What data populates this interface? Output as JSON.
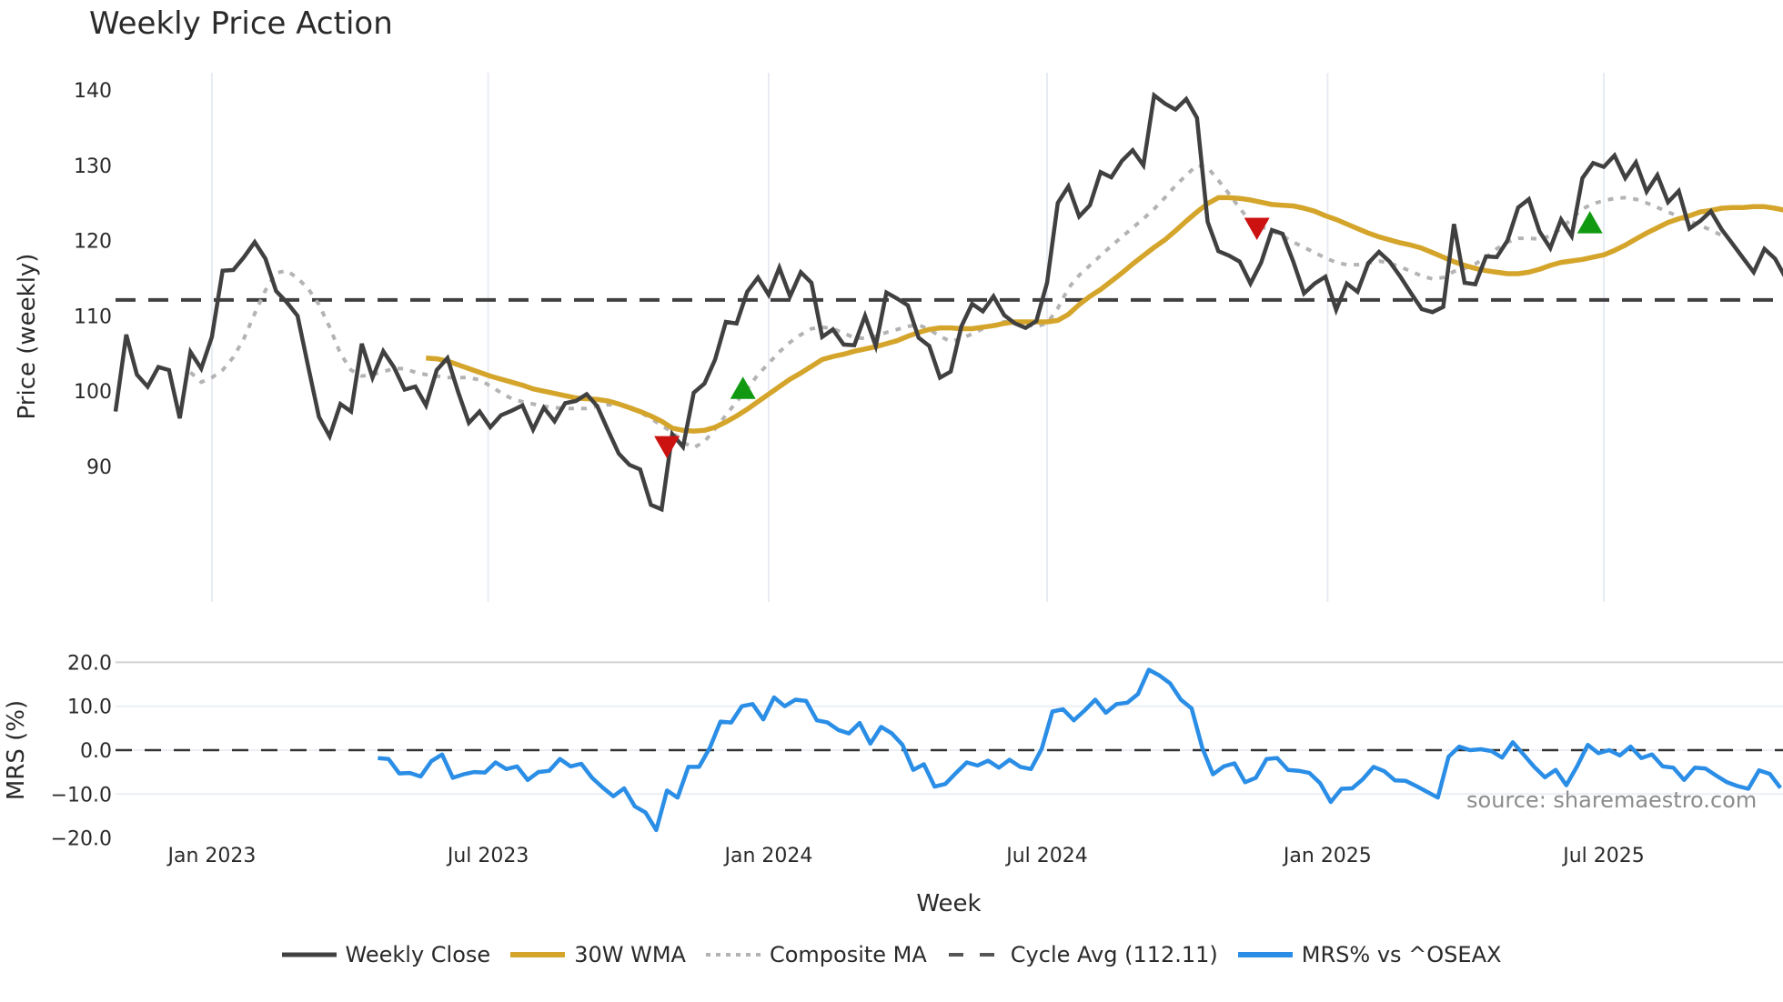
{
  "title": "Weekly Price Action",
  "source_text": "source: sharemaestro.com",
  "legend": [
    {
      "label": "Weekly Close",
      "color": "#404040",
      "style": "solid"
    },
    {
      "label": "30W WMA",
      "color": "#d4a52a",
      "style": "solid"
    },
    {
      "label": "Composite MA",
      "color": "#b3b3b3",
      "style": "dotted"
    },
    {
      "label": "Cycle Avg (112.11)",
      "color": "#404040",
      "style": "dashed"
    },
    {
      "label": "MRS% vs ^OSEAX",
      "color": "#2b8ee6",
      "style": "solid"
    }
  ],
  "chart_data": [
    {
      "type": "line",
      "title": "Weekly Price Action",
      "xlabel": "Week",
      "ylabel": "Price (weekly)",
      "ylim": [
        81,
        141
      ],
      "yticks": [
        90,
        100,
        110,
        120,
        130,
        140
      ],
      "xticks": [
        {
          "label": "Jan 2023",
          "week": 9
        },
        {
          "label": "Jul 2023",
          "week": 34.8
        },
        {
          "label": "Jan 2024",
          "week": 61
        },
        {
          "label": "Jul 2024",
          "week": 87
        },
        {
          "label": "Jan 2025",
          "week": 113.2
        },
        {
          "label": "Jul 2025",
          "week": 139
        }
      ],
      "x_start_week": 0,
      "x_end_week": 155.7,
      "grid": {
        "vertical": true,
        "horizontal": false
      },
      "cycle_avg": 112.11,
      "series": [
        {
          "name": "Weekly Close",
          "start_week": 0,
          "values": [
            97.3,
            107.5,
            102.2,
            100.6,
            103.2,
            102.8,
            96.4,
            105.2,
            103.0,
            107.2,
            116.0,
            116.1,
            117.8,
            119.8,
            117.6,
            113.3,
            111.8,
            110.0,
            103.2,
            96.6,
            94.0,
            98.3,
            97.3,
            106.3,
            101.8,
            105.3,
            103.2,
            100.2,
            100.6,
            98.1,
            102.8,
            104.4,
            99.9,
            95.8,
            97.3,
            95.2,
            96.8,
            97.4,
            98.1,
            94.9,
            97.8,
            96.0,
            98.4,
            98.7,
            99.6,
            98.0,
            94.8,
            91.7,
            90.2,
            89.6,
            84.9,
            84.3,
            94.3,
            92.6,
            99.8,
            101.0,
            104.2,
            109.2,
            109.0,
            113.2,
            115.1,
            112.8,
            116.4,
            112.6,
            115.8,
            114.4,
            107.2,
            108.2,
            106.2,
            106.1,
            110.0,
            106.0,
            113.1,
            112.3,
            111.4,
            107.1,
            106.0,
            101.8,
            102.6,
            108.6,
            111.6,
            110.6,
            112.6,
            110.1,
            109.0,
            108.4,
            109.3,
            114.4,
            125.0,
            127.2,
            123.2,
            124.7,
            129.1,
            128.4,
            130.6,
            132.0,
            130.0,
            139.3,
            138.2,
            137.4,
            138.8,
            136.3,
            122.5,
            118.6,
            118.0,
            117.2,
            114.3,
            117.1,
            121.4,
            120.9,
            117.2,
            113.0,
            114.3,
            115.2,
            110.8,
            114.3,
            113.2,
            117.0,
            118.5,
            117.2,
            115.2,
            113.0,
            110.9,
            110.5,
            111.2,
            122.2,
            114.4,
            114.2,
            117.9,
            117.8,
            120.0,
            124.4,
            125.5,
            121.2,
            119.0,
            122.8,
            120.6,
            128.3,
            130.3,
            129.8,
            131.3,
            128.3,
            130.4,
            126.5,
            128.7,
            125.1,
            126.6,
            121.6,
            122.6,
            123.9,
            121.5,
            119.6,
            117.7,
            115.8,
            118.9,
            117.6,
            115.0
          ]
        },
        {
          "name": "30W WMA",
          "start_week": 29,
          "values": [
            104.4,
            104.3,
            104.0,
            103.5,
            103.0,
            102.5,
            102.0,
            101.6,
            101.2,
            100.8,
            100.3,
            100.0,
            99.7,
            99.4,
            99.1,
            99.0,
            98.9,
            98.7,
            98.3,
            97.8,
            97.3,
            96.7,
            96.0,
            95.1,
            94.8,
            94.7,
            94.8,
            95.2,
            95.9,
            96.7,
            97.6,
            98.6,
            99.6,
            100.6,
            101.6,
            102.4,
            103.3,
            104.2,
            104.6,
            104.9,
            105.3,
            105.6,
            105.9,
            106.3,
            106.7,
            107.3,
            107.8,
            108.2,
            108.4,
            108.4,
            108.3,
            108.3,
            108.5,
            108.7,
            109.0,
            109.2,
            109.2,
            109.2,
            109.2,
            109.4,
            110.2,
            111.5,
            112.6,
            113.5,
            114.6,
            115.7,
            116.9,
            118.0,
            119.1,
            120.1,
            121.3,
            122.6,
            123.8,
            124.9,
            125.7,
            125.7,
            125.6,
            125.4,
            125.1,
            124.8,
            124.7,
            124.6,
            124.3,
            123.9,
            123.3,
            122.8,
            122.2,
            121.6,
            121.0,
            120.5,
            120.1,
            119.7,
            119.4,
            119.0,
            118.4,
            117.8,
            117.2,
            116.7,
            116.3,
            116.0,
            115.8,
            115.6,
            115.6,
            115.8,
            116.2,
            116.7,
            117.1,
            117.3,
            117.5,
            117.8,
            118.1,
            118.7,
            119.4,
            120.2,
            121.0,
            121.7,
            122.4,
            122.9,
            123.3,
            123.8,
            124.0,
            124.3,
            124.4,
            124.4,
            124.5,
            124.5,
            124.3,
            124.0,
            123.7,
            123.3,
            122.9,
            122.5
          ]
        },
        {
          "name": "Composite MA",
          "start_week": 7,
          "values": [
            102.5,
            101.2,
            101.8,
            102.8,
            104.5,
            107.0,
            110.3,
            113.4,
            115.7,
            116.0,
            115.0,
            113.6,
            111.5,
            108.5,
            105.0,
            102.8,
            102.0,
            102.2,
            102.6,
            103.0,
            103.0,
            102.5,
            102.2,
            102.0,
            101.8,
            101.8,
            101.8,
            101.5,
            100.7,
            99.8,
            99.0,
            98.6,
            98.3,
            98.0,
            97.8,
            97.7,
            97.7,
            97.7,
            98.0,
            98.2,
            98.2,
            98.0,
            97.2,
            96.4,
            95.4,
            94.6,
            93.2,
            92.5,
            93.3,
            95.0,
            96.8,
            98.6,
            100.3,
            102.2,
            103.7,
            105.2,
            106.5,
            107.5,
            108.3,
            108.5,
            108.3,
            107.7,
            107.1,
            107.0,
            107.3,
            107.8,
            108.2,
            108.6,
            108.8,
            108.2,
            107.3,
            106.6,
            107.0,
            107.6,
            108.3,
            108.8,
            109.2,
            109.2,
            108.8,
            108.6,
            109.0,
            111.0,
            113.7,
            115.4,
            116.7,
            118.0,
            119.3,
            120.5,
            121.7,
            122.9,
            124.2,
            125.7,
            127.3,
            128.7,
            130.0,
            129.7,
            128.0,
            126.2,
            124.3,
            122.5,
            121.8,
            121.3,
            120.6,
            119.8,
            119.1,
            118.4,
            117.7,
            117.1,
            116.8,
            116.8,
            117.0,
            117.3,
            117.0,
            116.5,
            115.9,
            115.3,
            114.9,
            115.1,
            115.9,
            116.3,
            116.9,
            117.8,
            118.9,
            119.8,
            120.3,
            120.3,
            120.2,
            120.6,
            121.6,
            122.9,
            124.2,
            124.9,
            125.3,
            125.6,
            125.7,
            125.5,
            125.0,
            124.4,
            123.8,
            123.2,
            122.6,
            122.0,
            121.4,
            120.7
          ]
        }
      ],
      "markers": [
        {
          "type": "sell",
          "shape": "triangle-down",
          "color": "#cc1111",
          "week": 51.5,
          "value": 92.6
        },
        {
          "type": "buy",
          "shape": "triangle-up",
          "color": "#119911",
          "week": 58.6,
          "value": 100.4
        },
        {
          "type": "sell",
          "shape": "triangle-down",
          "color": "#cc1111",
          "week": 106.6,
          "value": 121.6
        },
        {
          "type": "buy",
          "shape": "triangle-up",
          "color": "#119911",
          "week": 137.7,
          "value": 122.4
        }
      ]
    },
    {
      "type": "line",
      "title": "",
      "xlabel": "Week",
      "ylabel": "MRS (%)",
      "ylim": [
        -20,
        20
      ],
      "yticks": [
        -20.0,
        -10.0,
        0.0,
        10.0,
        20.0
      ],
      "zero_line": 0.0,
      "series": [
        {
          "name": "MRS% vs ^OSEAX",
          "start_week": 24.5,
          "values": [
            -1.8,
            -2.0,
            -5.3,
            -5.2,
            -6.0,
            -2.5,
            -1.0,
            -6.3,
            -5.5,
            -5.0,
            -5.1,
            -2.8,
            -4.3,
            -3.7,
            -6.8,
            -5.0,
            -4.7,
            -2.0,
            -3.7,
            -3.1,
            -6.3,
            -8.5,
            -10.5,
            -8.7,
            -12.8,
            -14.2,
            -18.2,
            -9.2,
            -10.8,
            -3.8,
            -3.8,
            0.5,
            6.5,
            6.3,
            10.0,
            10.5,
            7.0,
            12.0,
            10.0,
            11.5,
            11.2,
            6.8,
            6.3,
            4.6,
            3.8,
            6.2,
            1.5,
            5.3,
            3.8,
            1.2,
            -4.5,
            -3.2,
            -8.3,
            -7.7,
            -5.2,
            -2.8,
            -3.5,
            -2.4,
            -4.0,
            -2.2,
            -3.8,
            -4.3,
            0.3,
            8.8,
            9.3,
            6.8,
            9.0,
            11.5,
            8.5,
            10.5,
            10.8,
            12.8,
            18.3,
            17.0,
            15.2,
            11.5,
            9.5,
            0.5,
            -5.5,
            -3.7,
            -3.0,
            -7.3,
            -6.3,
            -2.0,
            -1.8,
            -4.5,
            -4.7,
            -5.2,
            -7.5,
            -11.8,
            -8.8,
            -8.7,
            -6.6,
            -3.8,
            -4.8,
            -6.9,
            -7.0,
            -8.2,
            -9.5,
            -10.8,
            -1.5,
            0.8,
            0.0,
            0.2,
            -0.2,
            -1.7,
            1.8,
            -1.0,
            -3.8,
            -6.2,
            -4.5,
            -8.0,
            -3.7,
            1.2,
            -0.7,
            0.0,
            -1.2,
            0.8,
            -1.8,
            -1.0,
            -3.7,
            -4.0,
            -6.8,
            -4.0,
            -4.2,
            -5.8,
            -7.3,
            -8.2,
            -8.8,
            -4.6,
            -5.4,
            -8.6
          ]
        }
      ]
    }
  ]
}
